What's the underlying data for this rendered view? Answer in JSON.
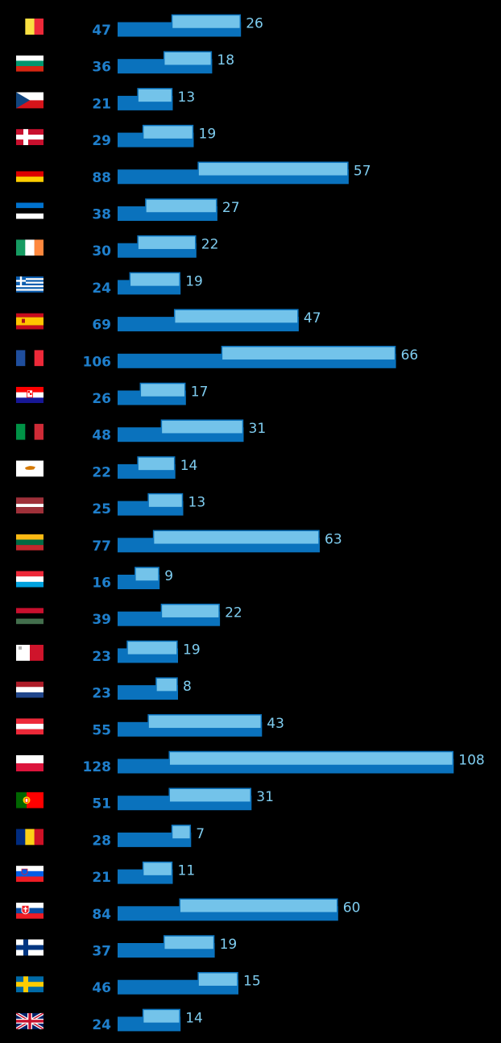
{
  "colors": {
    "background": "#000000",
    "value_bar": "#0a72bd",
    "inner_bar": "#73c3ea",
    "inner_bar_border": "#0a72bd",
    "value_label": "#1f7fcc",
    "inner_label": "#7fcdf0"
  },
  "chart_data": {
    "type": "bar",
    "orientation": "horizontal",
    "categories": [
      "belgium-flag-icon",
      "bulgaria-flag-icon",
      "czechia-flag-icon",
      "denmark-flag-icon",
      "germany-flag-icon",
      "estonia-flag-icon",
      "ireland-flag-icon",
      "greece-flag-icon",
      "spain-flag-icon",
      "france-flag-icon",
      "croatia-flag-icon",
      "italy-flag-icon",
      "cyprus-flag-icon",
      "latvia-flag-icon",
      "lithuania-flag-icon",
      "luxembourg-flag-icon",
      "hungary-flag-icon",
      "malta-flag-icon",
      "netherlands-flag-icon",
      "austria-flag-icon",
      "poland-flag-icon",
      "portugal-flag-icon",
      "romania-flag-icon",
      "slovenia-flag-icon",
      "slovakia-flag-icon",
      "finland-flag-icon",
      "sweden-flag-icon",
      "uk-flag-icon"
    ],
    "series": [
      {
        "values": [
          47,
          36,
          21,
          29,
          88,
          38,
          30,
          24,
          69,
          106,
          26,
          48,
          22,
          25,
          77,
          16,
          39,
          23,
          23,
          55,
          128,
          51,
          28,
          21,
          84,
          37,
          46,
          24
        ]
      },
      {
        "values": [
          26,
          18,
          13,
          19,
          57,
          27,
          22,
          19,
          47,
          66,
          17,
          31,
          14,
          13,
          63,
          9,
          22,
          19,
          8,
          43,
          108,
          31,
          7,
          11,
          60,
          19,
          15,
          14
        ]
      }
    ],
    "xlim": [
      0,
      128
    ],
    "grid": false,
    "legend": "none"
  }
}
